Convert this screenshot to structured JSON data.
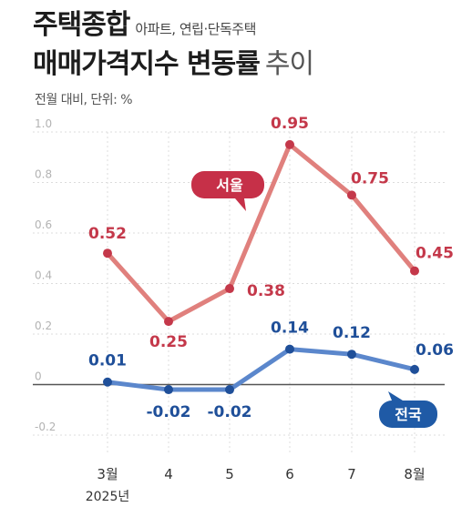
{
  "header": {
    "title_main": "주택종합",
    "title_sub": "아파트, 연립·단독주택",
    "title_line2_bold": "매매가격지수 변동률",
    "title_line2_light": "추이",
    "unit_note": "전월 대비, 단위: %"
  },
  "chart_data": {
    "type": "line",
    "categories": [
      "3월",
      "4",
      "5",
      "6",
      "7",
      "8월"
    ],
    "year_label": "2025년",
    "series": [
      {
        "name": "서울",
        "color": "#e0807d",
        "label_color": "#c4384a",
        "values": [
          0.52,
          0.25,
          0.38,
          0.95,
          0.75,
          0.45
        ],
        "labels": [
          "0.52",
          "0.25",
          "0.38",
          "0.95",
          "0.75",
          "0.45"
        ]
      },
      {
        "name": "전국",
        "color": "#5b87cc",
        "label_color": "#1f4f99",
        "values": [
          0.01,
          -0.02,
          -0.02,
          0.14,
          0.12,
          0.06
        ],
        "labels": [
          "0.01",
          "-0.02",
          "-0.02",
          "0.14",
          "0.12",
          "0.06"
        ]
      }
    ],
    "yticks": [
      "1.0",
      "0.8",
      "0.6",
      "0.4",
      "0.2",
      "0",
      "-0.2"
    ],
    "ytick_values": [
      1.0,
      0.8,
      0.6,
      0.4,
      0.2,
      0,
      -0.2
    ],
    "ylim": [
      -0.2,
      1.0
    ],
    "grid": true,
    "colors": {
      "seoul_callout": "#c63048",
      "nation_callout": "#1f5aa6"
    }
  }
}
